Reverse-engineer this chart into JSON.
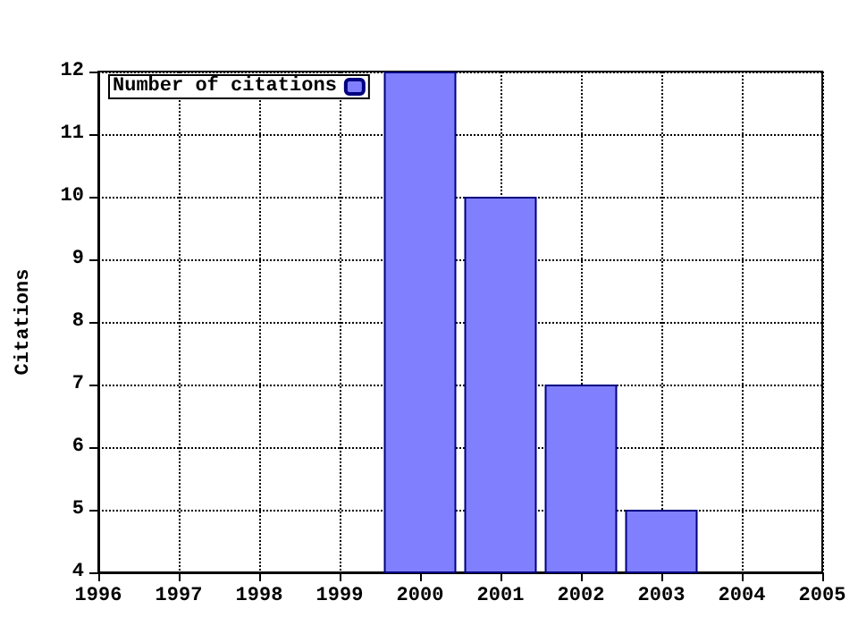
{
  "chart_data": {
    "type": "bar",
    "ylabel": "Citations",
    "x": [
      2000,
      2001,
      2002,
      2003
    ],
    "series": [
      {
        "name": "Number of citations",
        "color": "#8080ff",
        "values": [
          12,
          10,
          7,
          5
        ]
      }
    ],
    "xlim": [
      1996,
      2005
    ],
    "xticks": [
      1996,
      1997,
      1998,
      1999,
      2000,
      2001,
      2002,
      2003,
      2004,
      2005
    ],
    "ylim": [
      4,
      12
    ],
    "yticks": [
      4,
      5,
      6,
      7,
      8,
      9,
      10,
      11,
      12
    ],
    "grid": true,
    "legend": "top left"
  }
}
